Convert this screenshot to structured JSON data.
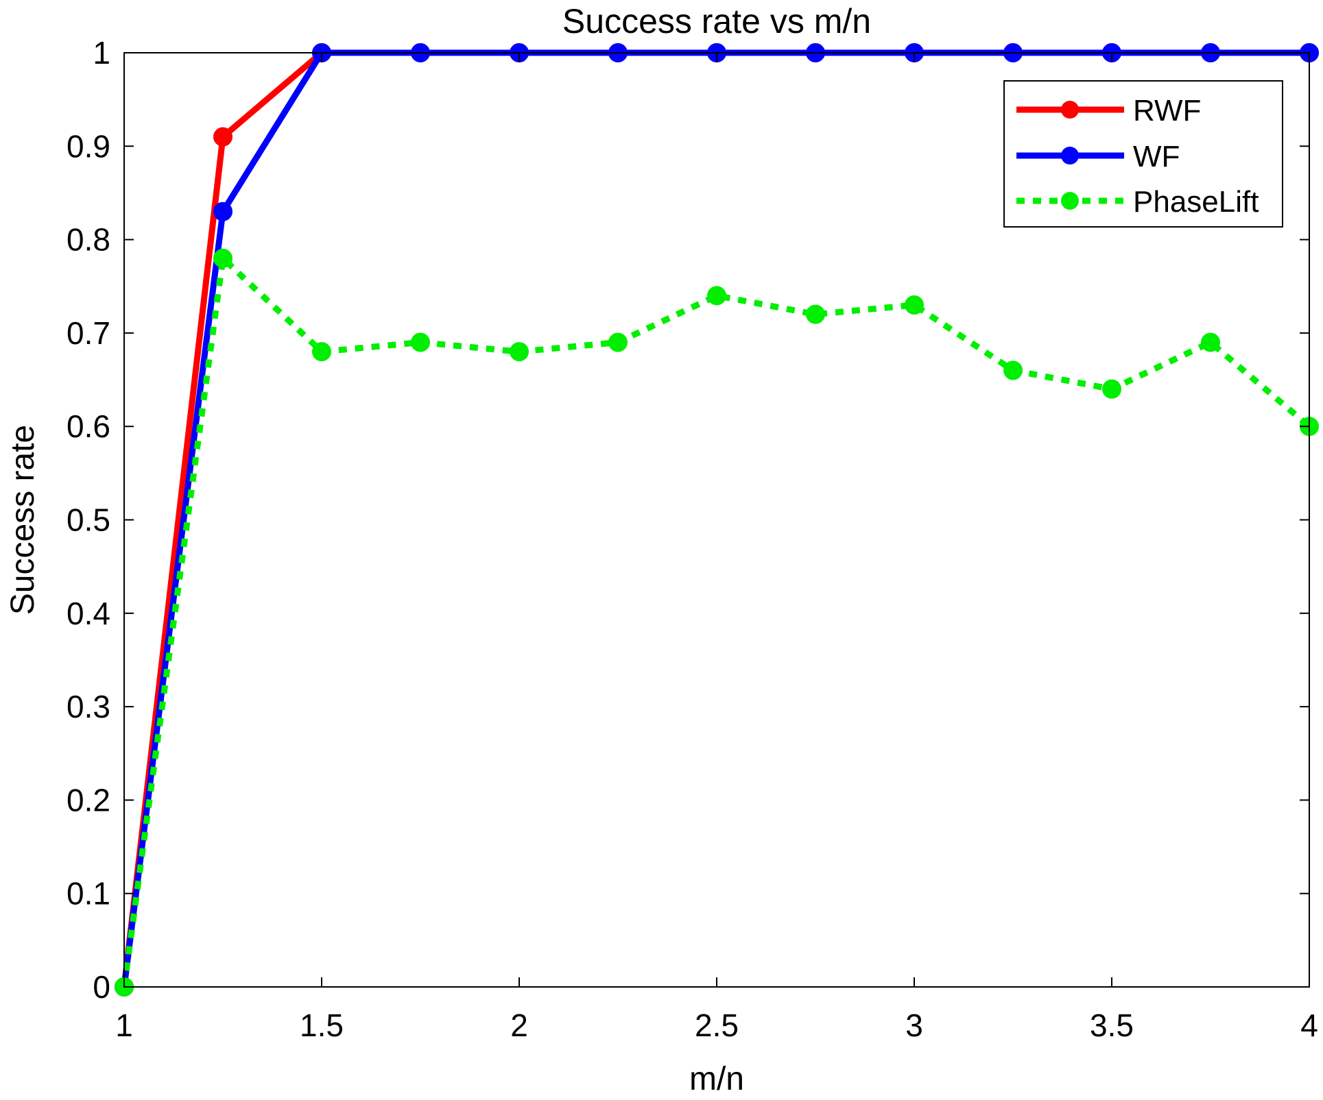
{
  "chart_data": {
    "type": "line",
    "title": "Success rate vs m/n",
    "xlabel": "m/n",
    "ylabel": "Success rate",
    "xlim": [
      1,
      4
    ],
    "ylim": [
      0,
      1
    ],
    "x_ticks": [
      1,
      1.5,
      2,
      2.5,
      3,
      3.5,
      4
    ],
    "x_tick_labels": [
      "1",
      "1.5",
      "2",
      "2.5",
      "3",
      "3.5",
      "4"
    ],
    "y_ticks": [
      0,
      0.1,
      0.2,
      0.3,
      0.4,
      0.5,
      0.6,
      0.7,
      0.8,
      0.9,
      1
    ],
    "y_tick_labels": [
      "0",
      "0.1",
      "0.2",
      "0.3",
      "0.4",
      "0.5",
      "0.6",
      "0.7",
      "0.8",
      "0.9",
      "1"
    ],
    "grid": false,
    "legend_position": "top-right",
    "x": [
      1,
      1.25,
      1.5,
      1.75,
      2,
      2.25,
      2.5,
      2.75,
      3,
      3.25,
      3.5,
      3.75,
      4
    ],
    "series": [
      {
        "name": "RWF",
        "color": "#ff0000",
        "line_style": "solid",
        "marker": "circle",
        "values": [
          0,
          0.91,
          1,
          1,
          1,
          1,
          1,
          1,
          1,
          1,
          1,
          1,
          1
        ]
      },
      {
        "name": "WF",
        "color": "#0000ff",
        "line_style": "solid",
        "marker": "circle",
        "values": [
          0,
          0.83,
          1,
          1,
          1,
          1,
          1,
          1,
          1,
          1,
          1,
          1,
          1
        ]
      },
      {
        "name": "PhaseLift",
        "color": "#00ee00",
        "line_style": "dotted",
        "marker": "circle",
        "values": [
          0,
          0.78,
          0.68,
          0.69,
          0.68,
          0.69,
          0.74,
          0.72,
          0.73,
          0.66,
          0.64,
          0.69,
          0.6
        ]
      }
    ]
  }
}
